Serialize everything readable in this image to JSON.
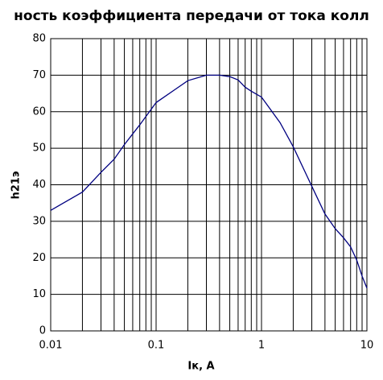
{
  "chart_data": {
    "type": "line",
    "title": "ность коэффициента передачи от тока колл",
    "x_label": "Iк, A",
    "y_label": "h21э",
    "x": [
      0.01,
      0.02,
      0.03,
      0.04,
      0.05,
      0.07,
      0.1,
      0.15,
      0.2,
      0.3,
      0.4,
      0.5,
      0.6,
      0.7,
      0.8,
      1,
      1.5,
      2,
      3,
      4,
      5,
      6,
      7,
      8,
      9,
      10
    ],
    "series": [
      {
        "name": "h21э",
        "color": "#000080",
        "values": [
          33,
          38,
          43.4,
          47,
          51,
          56.4,
          62.5,
          66,
          68.5,
          70,
          70,
          69.6,
          68.7,
          66.7,
          65.6,
          64,
          57,
          50.4,
          39.6,
          32,
          28,
          25.5,
          23,
          19.4,
          15,
          11.7
        ]
      }
    ],
    "xlim": [
      0.01,
      10
    ],
    "xticks": [
      0.01,
      0.1,
      1,
      10
    ],
    "xscale": "log",
    "ylim": [
      0,
      80
    ],
    "yticks": [
      0,
      10,
      20,
      30,
      40,
      50,
      60,
      70,
      80
    ],
    "grid": true,
    "minor_grid": true
  }
}
